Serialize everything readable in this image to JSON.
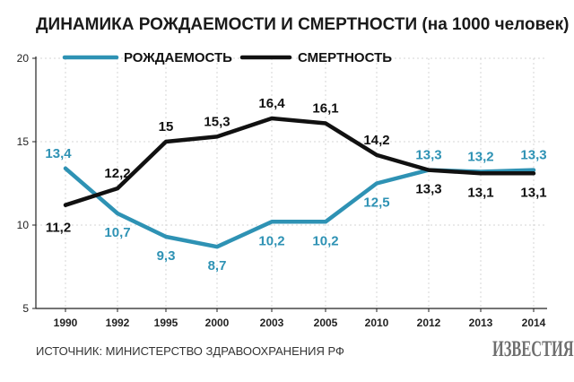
{
  "title": "ДИНАМИКА РОЖДАЕМОСТИ И СМЕРТНОСТИ (на 1000 человек)",
  "source": "ИСТОЧНИК: МИНИСТЕРСТВО ЗДРАВООХРАНЕНИЯ РФ",
  "logo_text": "ИЗВЕСТИЯ",
  "colors": {
    "birth": "#2e92b4",
    "death": "#111111",
    "axis": "#222222",
    "grid": "#d4d4d4"
  },
  "chart_data": {
    "type": "line",
    "categories": [
      "1990",
      "1992",
      "1995",
      "2000",
      "2003",
      "2005",
      "2010",
      "2012",
      "2013",
      "2014"
    ],
    "series": [
      {
        "name": "РОЖДАЕМОСТЬ",
        "values": [
          13.4,
          10.7,
          9.3,
          8.7,
          10.2,
          10.2,
          12.5,
          13.3,
          13.2,
          13.3
        ]
      },
      {
        "name": "СМЕРТНОСТЬ",
        "values": [
          11.2,
          12.2,
          15,
          15.3,
          16.4,
          16.1,
          14.2,
          13.3,
          13.1,
          13.1
        ]
      }
    ],
    "series_labels": [
      [
        "13,4",
        "10,7",
        "9,3",
        "8,7",
        "10,2",
        "10,2",
        "12,5",
        "13,3",
        "13,2",
        "13,3"
      ],
      [
        "11,2",
        "12,2",
        "15",
        "15,3",
        "16,4",
        "16,1",
        "14,2",
        "13,3",
        "13,1",
        "13,1"
      ]
    ],
    "yticks": [
      5,
      10,
      15,
      20
    ],
    "ylim": [
      5,
      20
    ],
    "grid": true,
    "legend": "top"
  }
}
